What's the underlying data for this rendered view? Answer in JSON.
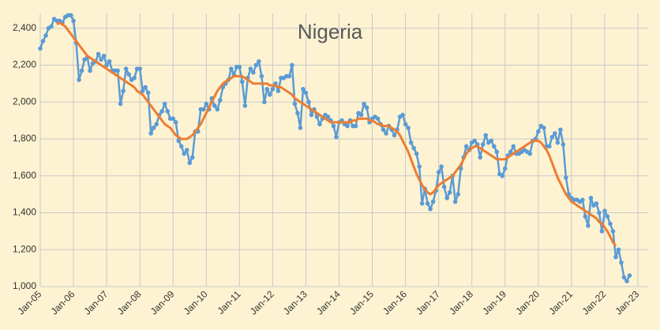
{
  "chart_data": {
    "type": "line",
    "title": "Nigeria",
    "x": [
      "2005-01",
      "2005-02",
      "2005-03",
      "2005-04",
      "2005-05",
      "2005-06",
      "2005-07",
      "2005-08",
      "2005-09",
      "2005-10",
      "2005-11",
      "2005-12",
      "2006-01",
      "2006-02",
      "2006-03",
      "2006-04",
      "2006-05",
      "2006-06",
      "2006-07",
      "2006-08",
      "2006-09",
      "2006-10",
      "2006-11",
      "2006-12",
      "2007-01",
      "2007-02",
      "2007-03",
      "2007-04",
      "2007-05",
      "2007-06",
      "2007-07",
      "2007-08",
      "2007-09",
      "2007-10",
      "2007-11",
      "2007-12",
      "2008-01",
      "2008-02",
      "2008-03",
      "2008-04",
      "2008-05",
      "2008-06",
      "2008-07",
      "2008-08",
      "2008-09",
      "2008-10",
      "2008-11",
      "2008-12",
      "2009-01",
      "2009-02",
      "2009-03",
      "2009-04",
      "2009-05",
      "2009-06",
      "2009-07",
      "2009-08",
      "2009-09",
      "2009-10",
      "2009-11",
      "2009-12",
      "2010-01",
      "2010-02",
      "2010-03",
      "2010-04",
      "2010-05",
      "2010-06",
      "2010-07",
      "2010-08",
      "2010-09",
      "2010-10",
      "2010-11",
      "2010-12",
      "2011-01",
      "2011-02",
      "2011-03",
      "2011-04",
      "2011-05",
      "2011-06",
      "2011-07",
      "2011-08",
      "2011-09",
      "2011-10",
      "2011-11",
      "2011-12",
      "2012-01",
      "2012-02",
      "2012-03",
      "2012-04",
      "2012-05",
      "2012-06",
      "2012-07",
      "2012-08",
      "2012-09",
      "2012-10",
      "2012-11",
      "2012-12",
      "2013-01",
      "2013-02",
      "2013-03",
      "2013-04",
      "2013-05",
      "2013-06",
      "2013-07",
      "2013-08",
      "2013-09",
      "2013-10",
      "2013-11",
      "2013-12",
      "2014-01",
      "2014-02",
      "2014-03",
      "2014-04",
      "2014-05",
      "2014-06",
      "2014-07",
      "2014-08",
      "2014-09",
      "2014-10",
      "2014-11",
      "2014-12",
      "2015-01",
      "2015-02",
      "2015-03",
      "2015-04",
      "2015-05",
      "2015-06",
      "2015-07",
      "2015-08",
      "2015-09",
      "2015-10",
      "2015-11",
      "2015-12",
      "2016-01",
      "2016-02",
      "2016-03",
      "2016-04",
      "2016-05",
      "2016-06",
      "2016-07",
      "2016-08",
      "2016-09",
      "2016-10",
      "2016-11",
      "2016-12",
      "2017-01",
      "2017-02",
      "2017-03",
      "2017-04",
      "2017-05",
      "2017-06",
      "2017-07",
      "2017-08",
      "2017-09",
      "2017-10",
      "2017-11",
      "2017-12",
      "2018-01",
      "2018-02",
      "2018-03",
      "2018-04",
      "2018-05",
      "2018-06",
      "2018-07",
      "2018-08",
      "2018-09",
      "2018-10",
      "2018-11",
      "2018-12",
      "2019-01",
      "2019-02",
      "2019-03",
      "2019-04",
      "2019-05",
      "2019-06",
      "2019-07",
      "2019-08",
      "2019-09",
      "2019-10",
      "2019-11",
      "2019-12",
      "2020-01",
      "2020-02",
      "2020-03",
      "2020-04",
      "2020-05",
      "2020-06",
      "2020-07",
      "2020-08",
      "2020-09",
      "2020-10",
      "2020-11",
      "2020-12",
      "2021-01",
      "2021-02",
      "2021-03",
      "2021-04",
      "2021-05",
      "2021-06",
      "2021-07",
      "2021-08",
      "2021-09",
      "2021-10",
      "2021-11",
      "2021-12",
      "2022-01",
      "2022-02",
      "2022-03",
      "2022-04",
      "2022-05",
      "2022-06",
      "2022-07",
      "2022-08",
      "2022-09",
      "2022-10"
    ],
    "series": [
      {
        "color": "#5b9bd5",
        "markers": true,
        "values": [
          2290,
          2330,
          2360,
          2400,
          2410,
          2450,
          2440,
          2440,
          2430,
          2460,
          2470,
          2470,
          2440,
          2320,
          2120,
          2170,
          2230,
          2240,
          2170,
          2210,
          2220,
          2260,
          2230,
          2250,
          2200,
          2220,
          2170,
          2170,
          2170,
          1990,
          2060,
          2180,
          2150,
          2120,
          2130,
          2180,
          2180,
          2060,
          2080,
          2050,
          1830,
          1860,
          1880,
          1930,
          1950,
          1990,
          1950,
          1910,
          1910,
          1890,
          1790,
          1760,
          1720,
          1740,
          1670,
          1700,
          1840,
          1840,
          1960,
          1960,
          1990,
          1960,
          2020,
          1980,
          1960,
          2010,
          2080,
          2100,
          2120,
          2180,
          2150,
          2190,
          2190,
          2110,
          1980,
          2130,
          2180,
          2160,
          2200,
          2220,
          2140,
          2000,
          2070,
          2040,
          2070,
          2100,
          2060,
          2130,
          2130,
          2140,
          2140,
          2200,
          1990,
          1940,
          1860,
          2070,
          2050,
          2000,
          1930,
          1960,
          1920,
          1880,
          1910,
          1930,
          1920,
          1900,
          1870,
          1810,
          1890,
          1900,
          1880,
          1870,
          1900,
          1870,
          1870,
          1940,
          1930,
          1990,
          1970,
          1890,
          1910,
          1920,
          1910,
          1880,
          1850,
          1830,
          1870,
          1850,
          1820,
          1850,
          1920,
          1930,
          1880,
          1860,
          1780,
          1750,
          1720,
          1650,
          1450,
          1530,
          1450,
          1420,
          1460,
          1520,
          1620,
          1650,
          1540,
          1480,
          1510,
          1600,
          1460,
          1500,
          1640,
          1700,
          1760,
          1740,
          1780,
          1790,
          1770,
          1700,
          1770,
          1820,
          1780,
          1790,
          1760,
          1730,
          1610,
          1600,
          1640,
          1710,
          1730,
          1760,
          1720,
          1720,
          1730,
          1740,
          1730,
          1720,
          1790,
          1800,
          1840,
          1870,
          1860,
          1760,
          1760,
          1810,
          1830,
          1780,
          1850,
          1770,
          1590,
          1500,
          1480,
          1470,
          1470,
          1460,
          1470,
          1380,
          1330,
          1480,
          1440,
          1450,
          1400,
          1300,
          1410,
          1380,
          1340,
          1300,
          1160,
          1200,
          1130,
          1050,
          1030,
          1060
        ]
      },
      {
        "color": "#ed7d31",
        "markers": false,
        "values": [
          null,
          null,
          null,
          null,
          null,
          null,
          2420,
          2430,
          2420,
          2410,
          2390,
          2370,
          2350,
          2330,
          2310,
          2290,
          2270,
          2250,
          2240,
          2230,
          2220,
          2210,
          2200,
          2190,
          2180,
          2170,
          2160,
          2150,
          2140,
          2130,
          2120,
          2110,
          2100,
          2090,
          2080,
          2060,
          2050,
          2040,
          2020,
          2000,
          1980,
          1960,
          1940,
          1920,
          1900,
          1880,
          1870,
          1860,
          1840,
          1820,
          1810,
          1800,
          1800,
          1800,
          1810,
          1820,
          1840,
          1860,
          1880,
          1910,
          1940,
          1970,
          2000,
          2030,
          2060,
          2080,
          2100,
          2110,
          2120,
          2130,
          2140,
          2140,
          2140,
          2140,
          2130,
          2120,
          2110,
          2100,
          2100,
          2100,
          2100,
          2100,
          2100,
          2090,
          2090,
          2090,
          2080,
          2080,
          2070,
          2060,
          2050,
          2040,
          2020,
          2010,
          2000,
          1990,
          1980,
          1970,
          1960,
          1950,
          1940,
          1930,
          1920,
          1910,
          1900,
          1890,
          1890,
          1890,
          1890,
          1890,
          1890,
          1890,
          1890,
          1900,
          1900,
          1910,
          1910,
          1910,
          1910,
          1900,
          1900,
          1890,
          1880,
          1880,
          1870,
          1870,
          1870,
          1860,
          1850,
          1840,
          1820,
          1790,
          1760,
          1730,
          1690,
          1650,
          1610,
          1580,
          1550,
          1530,
          1510,
          1500,
          1510,
          1530,
          1550,
          1560,
          1570,
          1580,
          1590,
          1600,
          1620,
          1640,
          1660,
          1690,
          1720,
          1740,
          1750,
          1760,
          1760,
          1750,
          1740,
          1730,
          1720,
          1710,
          1700,
          1690,
          1690,
          1690,
          1690,
          1700,
          1710,
          1720,
          1730,
          1740,
          1750,
          1760,
          1770,
          1780,
          1790,
          1790,
          1790,
          1780,
          1760,
          1740,
          1710,
          1670,
          1630,
          1590,
          1560,
          1530,
          1500,
          1480,
          1460,
          1450,
          1440,
          1430,
          1420,
          1410,
          1400,
          1390,
          1380,
          1370,
          1350,
          1340,
          1320,
          1300,
          1270,
          1240,
          1220,
          null,
          null,
          null,
          null,
          null
        ]
      }
    ],
    "xlim": [
      "2005-01",
      "2023-01"
    ],
    "xticks": [
      {
        "value": "2005-01",
        "label": "Jan-05"
      },
      {
        "value": "2006-01",
        "label": "Jan-06"
      },
      {
        "value": "2007-01",
        "label": "Jan-07"
      },
      {
        "value": "2008-01",
        "label": "Jan-08"
      },
      {
        "value": "2009-01",
        "label": "Jan-09"
      },
      {
        "value": "2010-01",
        "label": "Jan-10"
      },
      {
        "value": "2011-01",
        "label": "Jan-11"
      },
      {
        "value": "2012-01",
        "label": "Jan-12"
      },
      {
        "value": "2013-01",
        "label": "Jan-13"
      },
      {
        "value": "2014-01",
        "label": "Jan-14"
      },
      {
        "value": "2015-01",
        "label": "Jan-15"
      },
      {
        "value": "2016-01",
        "label": "Jan-16"
      },
      {
        "value": "2017-01",
        "label": "Jan-17"
      },
      {
        "value": "2018-01",
        "label": "Jan-18"
      },
      {
        "value": "2019-01",
        "label": "Jan-19"
      },
      {
        "value": "2020-01",
        "label": "Jan-20"
      },
      {
        "value": "2021-01",
        "label": "Jan-21"
      },
      {
        "value": "2022-01",
        "label": "Jan-22"
      },
      {
        "value": "2023-01",
        "label": "Jan-23"
      }
    ],
    "ylim": [
      1000,
      2480
    ],
    "yticks": [
      {
        "value": 1000,
        "label": "1,000"
      },
      {
        "value": 1200,
        "label": "1,200"
      },
      {
        "value": 1400,
        "label": "1,400"
      },
      {
        "value": 1600,
        "label": "1,600"
      },
      {
        "value": 1800,
        "label": "1,800"
      },
      {
        "value": 2000,
        "label": "2,000"
      },
      {
        "value": 2200,
        "label": "2,200"
      },
      {
        "value": 2400,
        "label": "2,400"
      }
    ],
    "grid": true
  }
}
